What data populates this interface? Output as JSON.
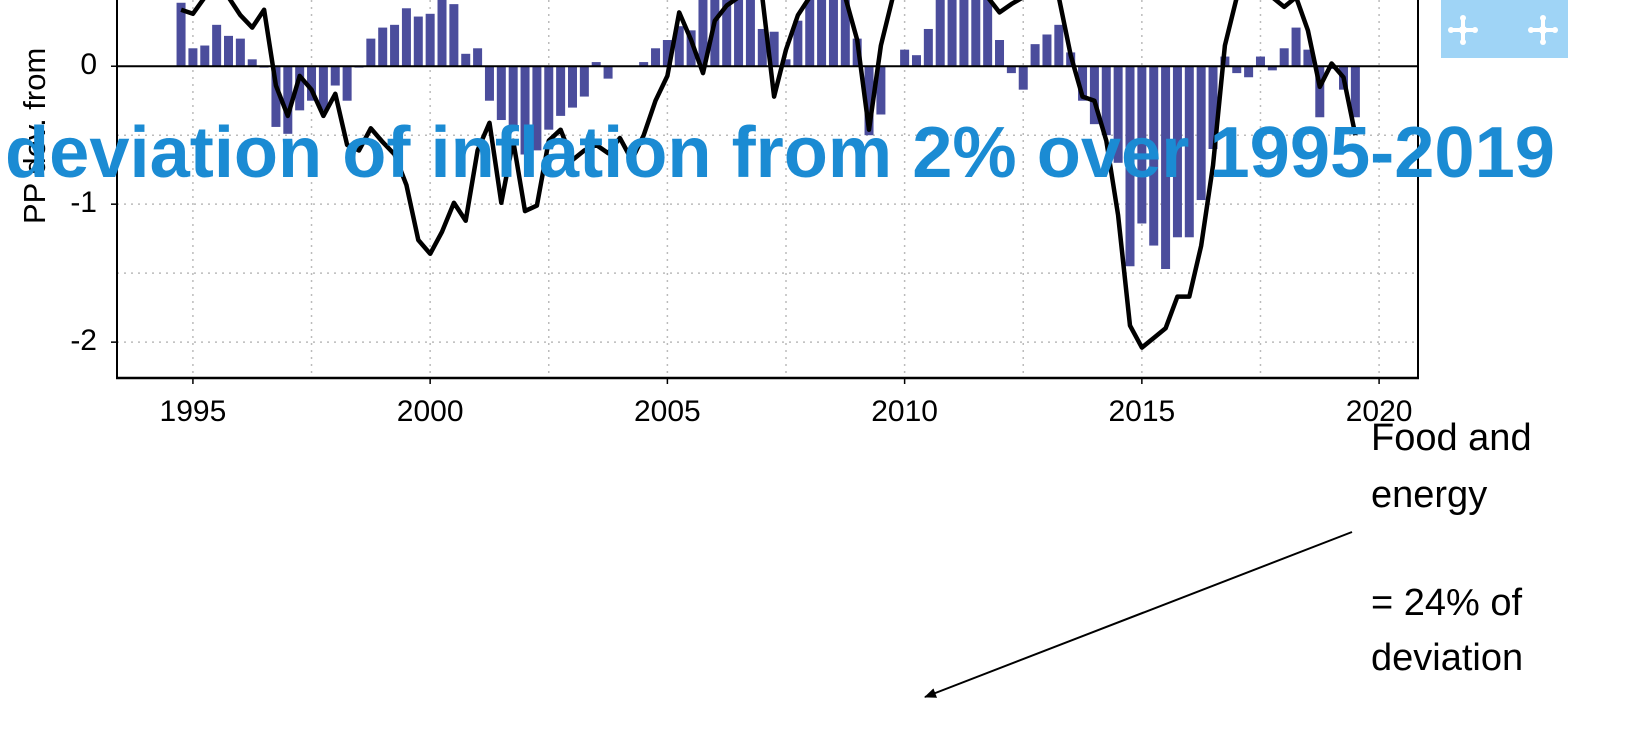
{
  "title": "deviation of inflation from 2% over 1995-2019",
  "annotations": [
    "Food and",
    "energy",
    "= 24% of",
    "deviation"
  ],
  "chart_data": {
    "type": "combo",
    "y_label": "PP dev. from",
    "xlim": [
      1993.4,
      2020.82
    ],
    "xticks": [
      1995,
      2000,
      2005,
      2010,
      2015,
      2020
    ],
    "xgrid": [
      1995,
      1997.5,
      2000,
      2002.5,
      2005,
      2007.5,
      2010,
      2012.5,
      2015,
      2017.5,
      2020
    ],
    "ylim": [
      -2.26,
      0.48
    ],
    "yticks": [
      -2,
      -1,
      0
    ],
    "ygrid": [
      -2,
      -1.5,
      -1,
      -0.5
    ],
    "grid": true,
    "x": [
      1994.75,
      1995,
      1995.25,
      1995.5,
      1995.75,
      1996,
      1996.25,
      1996.5,
      1996.75,
      1997,
      1997.25,
      1997.5,
      1997.75,
      1998,
      1998.25,
      1998.5,
      1998.75,
      1999,
      1999.25,
      1999.5,
      1999.75,
      2000,
      2000.25,
      2000.5,
      2000.75,
      2001,
      2001.25,
      2001.5,
      2001.75,
      2002,
      2002.25,
      2002.5,
      2002.75,
      2003,
      2003.25,
      2003.5,
      2003.75,
      2004,
      2004.25,
      2004.5,
      2004.75,
      2005,
      2005.25,
      2005.5,
      2005.75,
      2006,
      2006.25,
      2006.5,
      2006.75,
      2007,
      2007.25,
      2007.5,
      2007.75,
      2008,
      2008.25,
      2008.5,
      2008.75,
      2009,
      2009.25,
      2009.5,
      2009.75,
      2010,
      2010.25,
      2010.5,
      2010.75,
      2011,
      2011.25,
      2011.5,
      2011.75,
      2012,
      2012.25,
      2012.5,
      2012.75,
      2013,
      2013.25,
      2013.5,
      2013.75,
      2014,
      2014.25,
      2014.5,
      2014.75,
      2015,
      2015.25,
      2015.5,
      2015.75,
      2016,
      2016.25,
      2016.5,
      2016.75,
      2017,
      2017.25,
      2017.5,
      2017.75,
      2018,
      2018.25,
      2018.5,
      2018.75,
      2019,
      2019.25,
      2019.5
    ],
    "series": [
      {
        "type": "bar",
        "color": "#4b4d9c",
        "values": [
          0.46,
          0.13,
          0.15,
          0.3,
          0.22,
          0.2,
          0.05,
          -0.01,
          -0.44,
          -0.49,
          -0.32,
          -0.25,
          -0.32,
          -0.14,
          -0.25,
          -0.01,
          0.2,
          0.28,
          0.3,
          0.42,
          0.36,
          0.38,
          0.5,
          0.45,
          0.09,
          0.13,
          -0.25,
          -0.39,
          -0.43,
          -0.64,
          -0.61,
          -0.46,
          -0.36,
          -0.3,
          -0.22,
          0.03,
          -0.09,
          0,
          0,
          0.03,
          0.13,
          0.19,
          0.29,
          0.26,
          0.5,
          0.5,
          0.5,
          0.5,
          0.5,
          0.27,
          0.25,
          0.05,
          0.33,
          0.5,
          0.5,
          0.5,
          0.5,
          0.2,
          -0.5,
          -0.35,
          0,
          0.12,
          0.08,
          0.27,
          0.5,
          0.5,
          0.5,
          0.5,
          0.5,
          0.19,
          -0.05,
          -0.17,
          0.16,
          0.23,
          0.3,
          0.1,
          -0.25,
          -0.42,
          -0.5,
          -0.7,
          -1.45,
          -1.14,
          -1.3,
          -1.47,
          -1.24,
          -1.24,
          -0.97,
          -0.6,
          0.07,
          -0.05,
          -0.08,
          0.07,
          -0.03,
          0.13,
          0.28,
          0.12,
          -0.37,
          -0.02,
          -0.17,
          -0.37
        ]
      },
      {
        "type": "line",
        "color": "#000000",
        "values": [
          0.41,
          0.38,
          0.5,
          0.5,
          0.5,
          0.37,
          0.28,
          0.41,
          -0.14,
          -0.36,
          -0.07,
          -0.17,
          -0.36,
          -0.2,
          -0.57,
          -0.61,
          -0.45,
          -0.55,
          -0.64,
          -0.86,
          -1.26,
          -1.36,
          -1.2,
          -0.99,
          -1.12,
          -0.61,
          -0.41,
          -0.99,
          -0.54,
          -1.05,
          -1.01,
          -0.54,
          -0.46,
          -0.68,
          -0.61,
          -0.57,
          -0.63,
          -0.52,
          -0.68,
          -0.5,
          -0.25,
          -0.07,
          0.39,
          0.19,
          -0.05,
          0.33,
          0.44,
          0.5,
          0.5,
          0.5,
          -0.22,
          0.12,
          0.37,
          0.5,
          0.5,
          0.5,
          0.5,
          0.19,
          -0.46,
          0.15,
          0.5,
          0.5,
          0.5,
          0.5,
          0.5,
          0.5,
          0.5,
          0.5,
          0.5,
          0.39,
          0.45,
          0.5,
          0.5,
          0.5,
          0.5,
          0.08,
          -0.22,
          -0.25,
          -0.54,
          -1.08,
          -1.88,
          -2.04,
          -1.97,
          -1.9,
          -1.67,
          -1.67,
          -1.3,
          -0.72,
          0.15,
          0.5,
          0.5,
          0.5,
          0.5,
          0.43,
          0.5,
          0.26,
          -0.15,
          0.02,
          -0.08,
          -0.5
        ]
      }
    ]
  }
}
